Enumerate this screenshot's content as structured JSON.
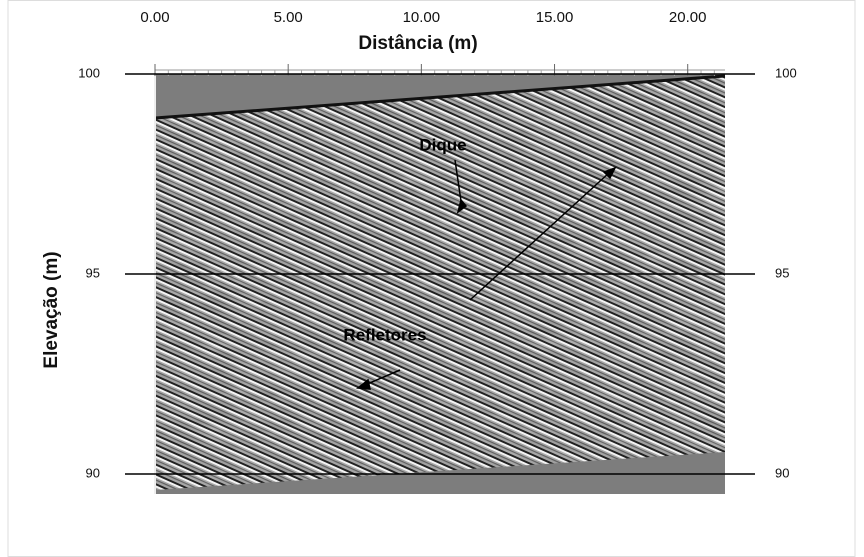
{
  "chart_data": {
    "type": "radargram",
    "xlabel": "Distância (m)",
    "ylabel": "Elevação (m)",
    "annotations": [
      "Dique",
      "Refletores"
    ],
    "xlim": [
      0,
      21.4
    ],
    "ylim": [
      89.5,
      100
    ],
    "xticks": [
      {
        "value": 0,
        "label": "0.00"
      },
      {
        "value": 5,
        "label": "5.00"
      },
      {
        "value": 10,
        "label": "10.00"
      },
      {
        "value": 15,
        "label": "15.00"
      },
      {
        "value": 20,
        "label": "20.00"
      }
    ],
    "yticks": [
      100,
      95,
      90
    ],
    "grid": true
  }
}
